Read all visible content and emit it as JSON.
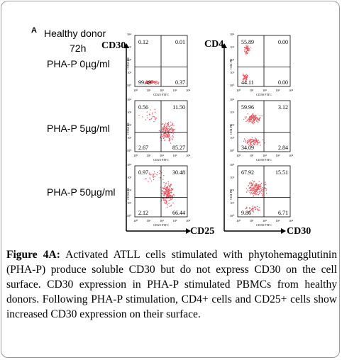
{
  "panel_label": "A",
  "donor_label": "Healthy donor",
  "time_label": "72h",
  "conditions": [
    "PHA-P 0µg/ml",
    "PHA-P 5µg/ml",
    "PHA-P 50µg/ml"
  ],
  "column_left": {
    "y_marker": "CD30",
    "x_marker": "CD25",
    "y_axis_label": "CD30 PE",
    "x_axis_label": "CD25 FITC"
  },
  "column_right": {
    "y_marker": "CD4",
    "x_marker": "CD30",
    "y_axis_label": "CD4 PE",
    "x_axis_label": "CD30 FITC"
  },
  "tick_labels": [
    "10⁰",
    "10¹",
    "10²",
    "10³",
    "10⁴"
  ],
  "chart_data": [
    {
      "type": "scatter",
      "panel": "CD25 vs CD30, PHA-P 0µg/ml",
      "quadrants": {
        "upper_left": 0.12,
        "upper_right": 0.01,
        "lower_left": 99.49,
        "lower_right": 0.37
      }
    },
    {
      "type": "scatter",
      "panel": "CD30 vs CD4, PHA-P 0µg/ml",
      "quadrants": {
        "upper_left": 55.89,
        "upper_right": 0.0,
        "lower_left": 44.11,
        "lower_right": 0.0
      }
    },
    {
      "type": "scatter",
      "panel": "CD25 vs CD30, PHA-P 5µg/ml",
      "quadrants": {
        "upper_left": 0.56,
        "upper_right": 11.5,
        "lower_left": 2.67,
        "lower_right": 85.27
      }
    },
    {
      "type": "scatter",
      "panel": "CD30 vs CD4, PHA-P 5µg/ml",
      "quadrants": {
        "upper_left": 59.96,
        "upper_right": 3.12,
        "lower_left": 34.09,
        "lower_right": 2.84
      }
    },
    {
      "type": "scatter",
      "panel": "CD25 vs CD30, PHA-P 50µg/ml",
      "quadrants": {
        "upper_left": 0.97,
        "upper_right": 30.48,
        "lower_left": 2.12,
        "lower_right": 66.44
      }
    },
    {
      "type": "scatter",
      "panel": "CD30 vs CD4, PHA-P 50µg/ml",
      "quadrants": {
        "upper_left": 67.92,
        "upper_right": 15.51,
        "lower_left": 9.86,
        "lower_right": 6.71
      }
    }
  ],
  "quadrant_text": [
    [
      "0.12",
      "0.01",
      "99.49",
      "0.37"
    ],
    [
      "55.89",
      "0.00",
      "44.11",
      "0.00"
    ],
    [
      "0.56",
      "11.50",
      "2.67",
      "85.27"
    ],
    [
      "59.96",
      "3.12",
      "34.09",
      "2.84"
    ],
    [
      "0.97",
      "30.48",
      "2.12",
      "66.44"
    ],
    [
      "67.92",
      "15.51",
      "9.86",
      "6.71"
    ]
  ],
  "caption": {
    "label": "Figure 4A:",
    "text": "Activated ATLL cells stimulated with phytohemagglutinin (PHA-P) produce soluble CD30 but do not express CD30 on the cell surface. CD30 expression in PHA-P stimulated PBMCs from healthy donors. Following PHA-P stimulation, CD4+ cells and CD25+ cells show increased CD30 expression on their surface."
  },
  "colors": {
    "dots": "#e8525e",
    "border": "#9a9a9a"
  }
}
